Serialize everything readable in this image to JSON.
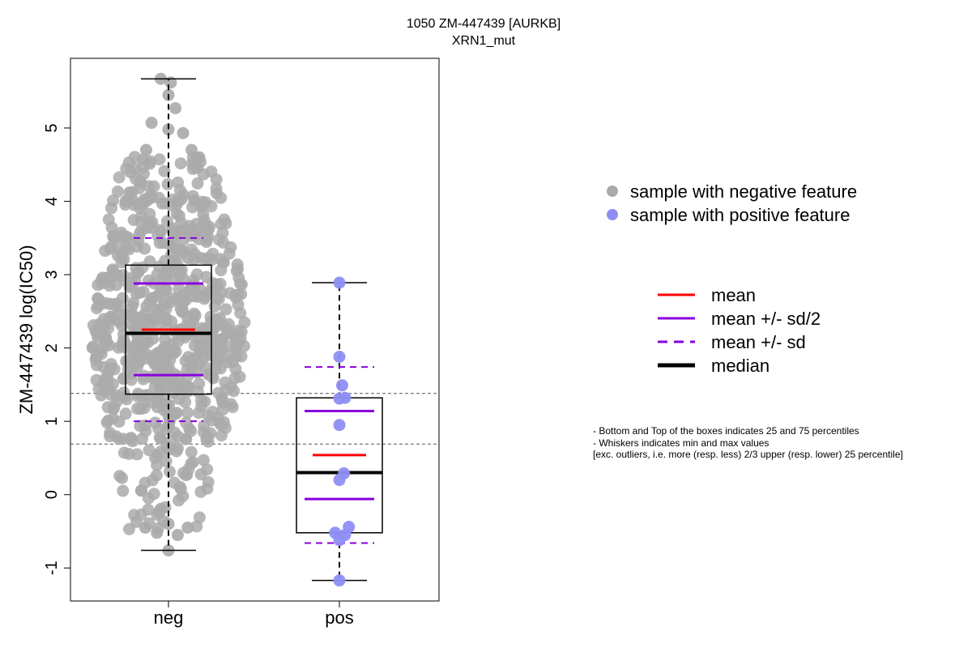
{
  "chart_data": {
    "type": "box",
    "title": "1050 ZM-447439 [AURKB]",
    "subtitle": "XRN1_mut",
    "ylabel": "ZM-447439 log(IC50)",
    "xlabel": "",
    "ylim": [
      -1.45,
      5.95
    ],
    "yticks": [
      -1,
      0,
      1,
      2,
      3,
      4,
      5
    ],
    "categories": [
      "neg",
      "pos"
    ],
    "reference_lines": [
      0.69,
      1.38
    ],
    "groups": [
      {
        "name": "neg",
        "n_points_approx": 700,
        "color": "#aaaaaa",
        "min": -0.76,
        "q1": 1.37,
        "median": 2.2,
        "q3": 3.13,
        "max": 5.67,
        "mean": 2.25,
        "mean_minus_sd_half": 1.63,
        "mean_plus_sd_half": 2.88,
        "mean_minus_sd": 1.0,
        "mean_plus_sd": 3.5,
        "highlight_points": [
          {
            "x": -0.1,
            "y": 5.67
          },
          {
            "x": 0.03,
            "y": 5.62
          },
          {
            "x": 0.0,
            "y": 5.45
          },
          {
            "x": 0.09,
            "y": 5.27
          },
          {
            "x": -0.22,
            "y": 5.07
          },
          {
            "x": 0.0,
            "y": 4.98
          },
          {
            "x": 0.19,
            "y": 4.93
          },
          {
            "x": -0.29,
            "y": 4.7
          },
          {
            "x": 0.3,
            "y": 4.7
          },
          {
            "x": 0.4,
            "y": 4.6
          },
          {
            "x": -0.33,
            "y": 4.57
          },
          {
            "x": 0.0,
            "y": -0.76
          },
          {
            "x": -0.15,
            "y": -0.52
          },
          {
            "x": 0.12,
            "y": -0.55
          },
          {
            "x": 0.25,
            "y": -0.45
          },
          {
            "x": -0.3,
            "y": -0.45
          },
          {
            "x": 0.0,
            "y": -0.4
          }
        ]
      },
      {
        "name": "pos",
        "color": "#8e8ef5",
        "min": -1.17,
        "q1": -0.52,
        "median": 0.3,
        "q3": 1.32,
        "max": 2.89,
        "mean": 0.54,
        "mean_minus_sd_half": -0.06,
        "mean_plus_sd_half": 1.14,
        "mean_minus_sd": -0.66,
        "mean_plus_sd": 1.74,
        "points": [
          {
            "x": 0.0,
            "y": 2.89
          },
          {
            "x": 0.0,
            "y": 1.88
          },
          {
            "x": 0.08,
            "y": 1.49
          },
          {
            "x": 0.0,
            "y": 1.31
          },
          {
            "x": 0.16,
            "y": 1.32
          },
          {
            "x": 0.0,
            "y": 0.95
          },
          {
            "x": 0.13,
            "y": 0.29
          },
          {
            "x": 0.0,
            "y": 0.2
          },
          {
            "x": -0.12,
            "y": -0.52
          },
          {
            "x": 0.0,
            "y": -0.62
          },
          {
            "x": 0.16,
            "y": -0.55
          },
          {
            "x": 0.27,
            "y": -0.44
          },
          {
            "x": 0.0,
            "y": -1.17
          }
        ]
      }
    ],
    "legend": {
      "placement": "right",
      "points": [
        {
          "label": "sample with negative feature",
          "color": "#aaaaaa"
        },
        {
          "label": "sample with positive feature",
          "color": "#8e8ef5"
        }
      ],
      "lines": [
        {
          "label": "mean",
          "color": "#ff0000",
          "style": "solid"
        },
        {
          "label": "mean +/- sd/2",
          "color": "#8800dd",
          "style": "solid"
        },
        {
          "label": "mean +/- sd",
          "color": "#8800dd",
          "style": "dashed"
        },
        {
          "label": "median",
          "color": "#000000",
          "style": "thick"
        }
      ]
    }
  },
  "notes": [
    "- Bottom and Top of the boxes indicates 25 and 75 percentiles",
    "- Whiskers indicates min and max values",
    "[exc. outliers, i.e. more (resp. less) 2/3 upper (resp. lower) 25 percentile]"
  ]
}
